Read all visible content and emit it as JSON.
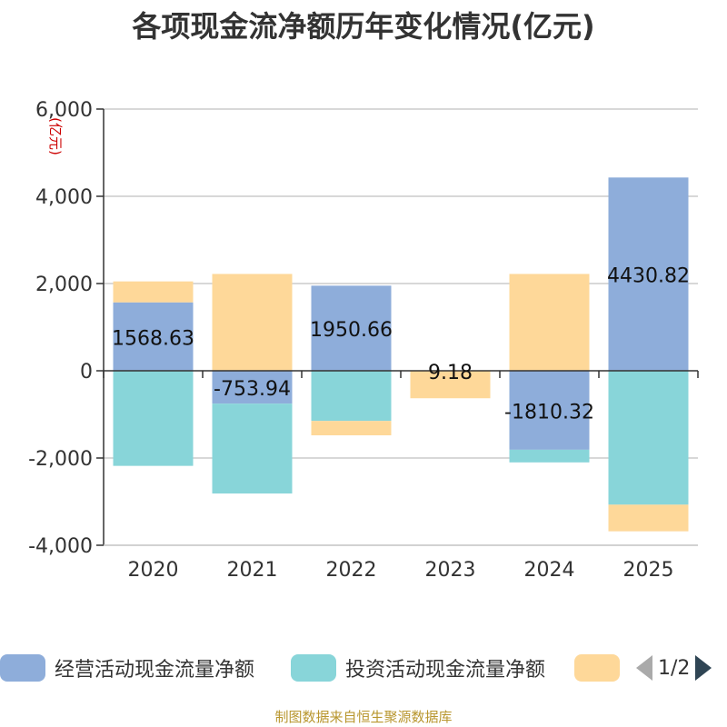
{
  "chart_data": {
    "type": "bar",
    "stacked": true,
    "title": "各项现金流净额历年变化情况(亿元)",
    "ylabel": "(亿元)",
    "categories": [
      "2020",
      "2021",
      "2022",
      "2023",
      "2024",
      "2025"
    ],
    "ylim": [
      -4000,
      6000
    ],
    "yticks": [
      -4000,
      -2000,
      0,
      2000,
      4000,
      6000
    ],
    "ytick_labels": [
      "-4,000",
      "-2,000",
      "0",
      "2,000",
      "4,000",
      "6,000"
    ],
    "series": [
      {
        "name": "经营活动现金流量净额",
        "color": "#8eadda",
        "values": [
          1568.63,
          -753.94,
          1950.66,
          9.18,
          -1810.32,
          4430.82
        ],
        "show_labels": true
      },
      {
        "name": "投资活动现金流量净额",
        "color": "#88d5d9",
        "values": [
          -2180,
          -2060,
          -1150,
          0,
          -290,
          -3070
        ],
        "show_labels": false
      },
      {
        "name": "",
        "color": "#fed899",
        "values": [
          480,
          2220,
          -330,
          -630,
          2220,
          -610
        ],
        "show_labels": false
      }
    ],
    "data_labels": [
      "1568.63",
      "-753.94",
      "1950.66",
      "9.18",
      "-1810.32",
      "4430.82"
    ],
    "legend": {
      "position": "bottom",
      "page": "1/2"
    }
  },
  "source": "制图数据来自恒生聚源数据库"
}
